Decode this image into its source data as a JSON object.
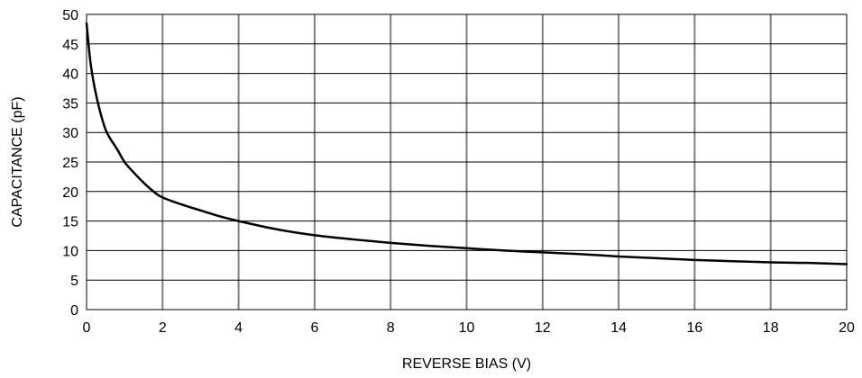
{
  "chart_data": {
    "type": "line",
    "title": "",
    "xlabel": "REVERSE BIAS (V)",
    "ylabel": "CAPACITANCE (pF)",
    "xlim": [
      0,
      20
    ],
    "ylim": [
      0,
      50
    ],
    "x_ticks": [
      "0",
      "2",
      "4",
      "6",
      "8",
      "10",
      "12",
      "14",
      "16",
      "18",
      "20"
    ],
    "y_ticks": [
      "0",
      "5",
      "10",
      "15",
      "20",
      "25",
      "30",
      "35",
      "40",
      "45",
      "50"
    ],
    "grid": {
      "vertical": true,
      "horizontal": true,
      "vertical_color": "#808080",
      "horizontal_color": "#000000"
    },
    "legend": "none",
    "series": [
      {
        "color": "#000000",
        "x": [
          0,
          0.1,
          0.2,
          0.3,
          0.4,
          0.5,
          0.6,
          0.8,
          1.0,
          1.2,
          1.5,
          1.8,
          2.0,
          2.5,
          3.0,
          3.5,
          4.0,
          5.0,
          6.0,
          7.0,
          8.0,
          9.0,
          10.0,
          11.0,
          12.0,
          13.0,
          14.0,
          15.0,
          16.0,
          17.0,
          18.0,
          19.0,
          20.0
        ],
        "y": [
          48.5,
          42.0,
          38.0,
          35.0,
          32.5,
          30.5,
          29.2,
          27.2,
          25.0,
          23.5,
          21.5,
          19.8,
          19.0,
          17.8,
          16.8,
          15.8,
          15.0,
          13.6,
          12.6,
          11.9,
          11.3,
          10.8,
          10.4,
          10.0,
          9.7,
          9.4,
          9.0,
          8.7,
          8.4,
          8.2,
          8.0,
          7.9,
          7.7
        ]
      }
    ]
  }
}
